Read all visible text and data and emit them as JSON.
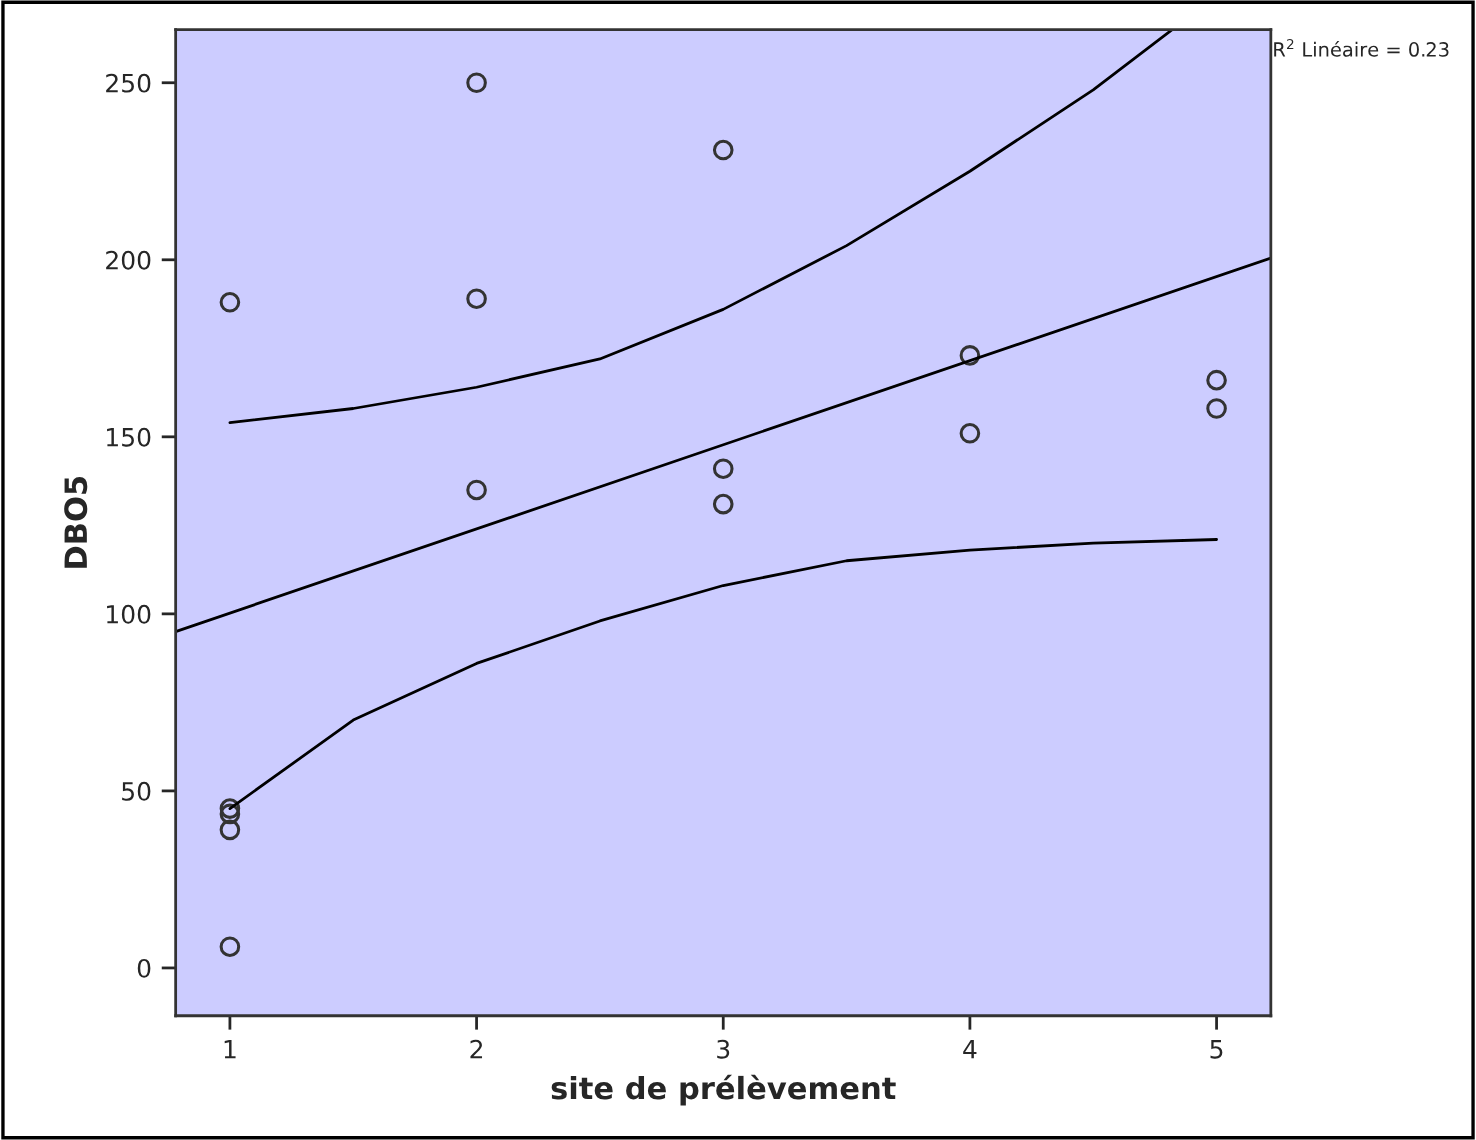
{
  "chart_data": {
    "type": "scatter",
    "xlabel": "site de prélèvement",
    "ylabel": "DBO5",
    "annotations": [
      "R$^{2}$ Linéaire = 0.23"
    ],
    "xlim": [
      0.78,
      5.22
    ],
    "ylim": [
      -13.5,
      265
    ],
    "xticks": [
      1,
      2,
      3,
      4,
      5
    ],
    "yticks": [
      0,
      50,
      100,
      150,
      200,
      250
    ],
    "grid": false,
    "legend": false,
    "marker": "circle",
    "series": [
      {
        "color": "#333333",
        "x": [
          1,
          1,
          1,
          1,
          1,
          2,
          2,
          2,
          3,
          3,
          3,
          4,
          4,
          5,
          5
        ],
        "values": [
          188,
          45,
          43.5,
          39,
          6,
          250,
          189,
          135,
          231,
          141,
          131,
          173,
          151,
          166,
          158
        ]
      },
      {
        "type": "line",
        "color": "#000000",
        "marker": "none",
        "line_style": "solid",
        "x": [
          0.78,
          5.22
        ],
        "values": [
          95,
          200.5
        ]
      },
      {
        "type": "line",
        "color": "#000000",
        "marker": "none",
        "line_style": "solid",
        "x": [
          1,
          1.5,
          2,
          2.5,
          3,
          3.5,
          4,
          4.5,
          4.82
        ],
        "values": [
          154,
          158,
          164,
          172,
          186,
          204,
          225,
          248,
          265
        ]
      },
      {
        "type": "line",
        "color": "#000000",
        "marker": "none",
        "line_style": "solid",
        "x": [
          1,
          1.5,
          2,
          2.5,
          3,
          3.5,
          4,
          4.5,
          5
        ],
        "values": [
          45,
          70,
          86,
          98,
          108,
          115,
          118,
          120,
          121
        ]
      }
    ]
  }
}
